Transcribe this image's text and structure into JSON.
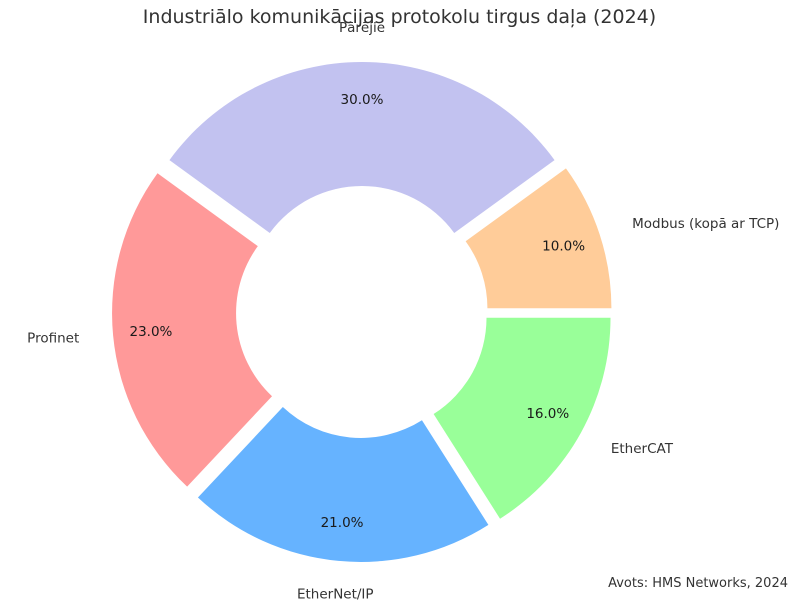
{
  "chart_data": {
    "type": "pie",
    "title": "Industriālo komunikācijas protokolu tirgus daļa (2024)",
    "source": "Avots: HMS Networks, 2024",
    "slices": [
      {
        "label": "Pārējie",
        "value": 30.0,
        "value_label": "30.0%",
        "color": "#c2c2f0"
      },
      {
        "label": "Profinet",
        "value": 23.0,
        "value_label": "23.0%",
        "color": "#ff9999"
      },
      {
        "label": "EtherNet/IP",
        "value": 21.0,
        "value_label": "21.0%",
        "color": "#66b3ff"
      },
      {
        "label": "EtherCAT",
        "value": 16.0,
        "value_label": "16.0%",
        "color": "#99ff99"
      },
      {
        "label": "Modbus (kopā ar TCP)",
        "value": 10.0,
        "value_label": "10.0%",
        "color": "#ffcc99"
      }
    ]
  }
}
